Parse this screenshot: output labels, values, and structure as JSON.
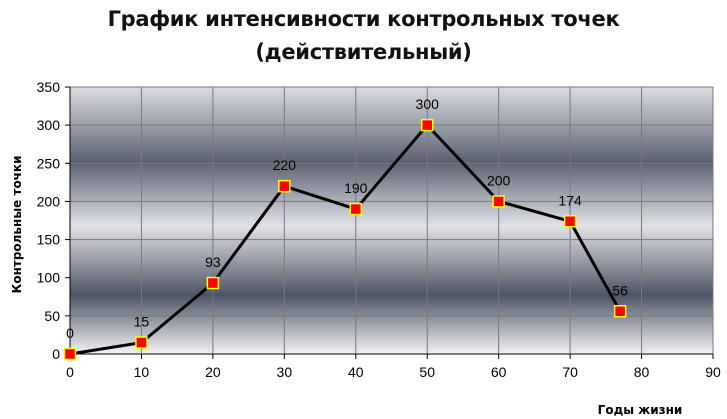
{
  "colors": {
    "line": "#000000",
    "marker_fill": "#ff0000",
    "marker_stroke": "#ffff00",
    "grid": "#7a7a7a",
    "plot_gradient": [
      "#dcdde2",
      "#5c6172",
      "#e2e3e7",
      "#4e5466",
      "#f4f4f6"
    ]
  },
  "chart_data": {
    "type": "line",
    "title_lines": [
      "График интенсивности контрольных точек",
      "(действительный)"
    ],
    "xlabel": "Годы жизни",
    "ylabel": "Контрольные  точки",
    "xlim": [
      0,
      90
    ],
    "ylim": [
      0,
      350
    ],
    "x_ticks": [
      0,
      10,
      20,
      30,
      40,
      50,
      60,
      70,
      80,
      90
    ],
    "y_ticks": [
      0,
      50,
      100,
      150,
      200,
      250,
      300,
      350
    ],
    "grid": true,
    "legend": false,
    "series": [
      {
        "x": [
          0,
          10,
          20,
          30,
          40,
          50,
          60,
          70,
          77
        ],
        "y": [
          0,
          15,
          93,
          220,
          190,
          300,
          200,
          174,
          56
        ],
        "labels": [
          "0",
          "15",
          "93",
          "220",
          "190",
          "300",
          "200",
          "174",
          "56"
        ],
        "marker": "square"
      }
    ]
  }
}
